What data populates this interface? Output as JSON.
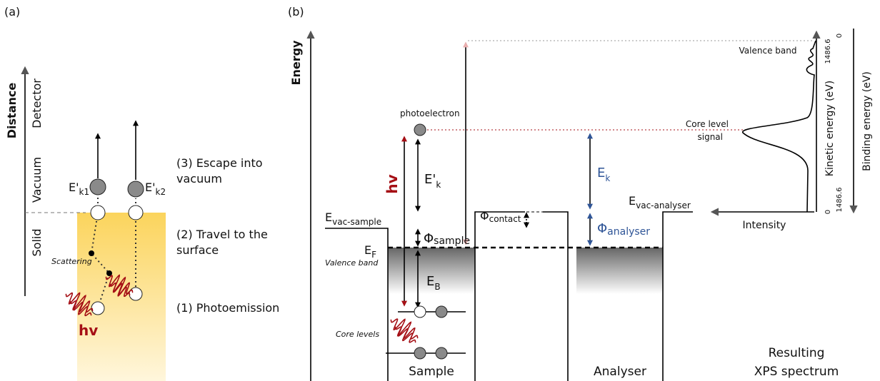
{
  "panel_a": {
    "label": "(a)",
    "axis_label": "Distance",
    "regions": [
      "Detector",
      "Vacuum",
      "Solid"
    ],
    "scattering": "Scattering",
    "hv": "hv",
    "energy_1": {
      "main": "E'",
      "sub": "k1"
    },
    "energy_2": {
      "main": "E'",
      "sub": "k2"
    },
    "steps": [
      [
        "(3) Escape into",
        "vacuum"
      ],
      [
        "(2) Travel to the",
        "surface"
      ],
      [
        "(1) Photoemission"
      ]
    ]
  },
  "panel_b": {
    "label": "(b)",
    "axis_label": "Energy",
    "photoelectron": "photoelectron",
    "hv": "hv",
    "e_kinetic_prime": {
      "main": "E'",
      "sub": "k"
    },
    "phi_sample": {
      "main": "Φ",
      "sub": "sample"
    },
    "e_binding": {
      "main": "E",
      "sub": "B"
    },
    "e_fermi": {
      "main": "E",
      "sub": "F"
    },
    "e_vac_sample": {
      "main": "E",
      "sub": "vac-sample"
    },
    "phi_contact": {
      "main": "Φ",
      "sub": "contact"
    },
    "e_kinetic": {
      "main": "E",
      "sub": "k"
    },
    "phi_analyser": {
      "main": "Φ",
      "sub": "analyser"
    },
    "e_vac_analyser": {
      "main": "E",
      "sub": "vac-analyser"
    },
    "valence_band": "Valence band",
    "core_levels": "Core levels",
    "sample": "Sample",
    "analyser": "Analyser",
    "result": [
      "Resulting",
      "XPS spectrum"
    ],
    "spectrum": {
      "valence_band": "Valence band",
      "core_level": [
        "Core level",
        "signal"
      ],
      "x_axis_label": "Intensity",
      "kinetic_axis_label": "Kinetic energy (eV)",
      "binding_axis_label": "Binding energy (eV)",
      "kinetic_ticks": [
        "0",
        "1486.6"
      ],
      "binding_ticks": [
        "0",
        "1486.6"
      ]
    }
  }
}
